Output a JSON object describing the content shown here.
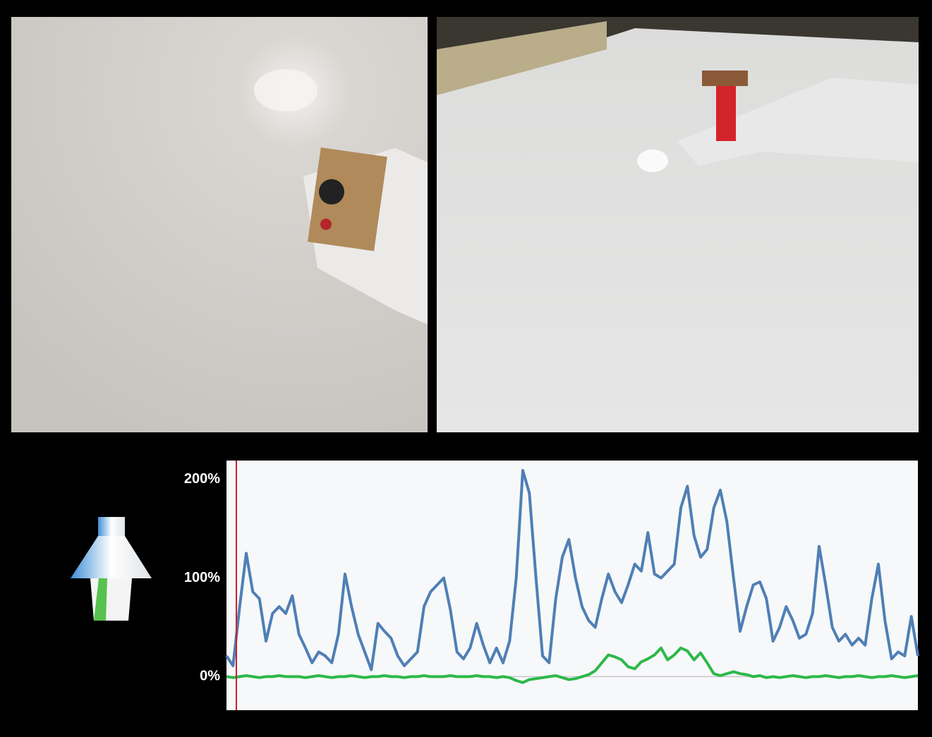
{
  "chart_data": {
    "type": "line",
    "series": [
      {
        "color": "#4f7fb5",
        "values": [
          21,
          11,
          71,
          125,
          86,
          79,
          36,
          64,
          71,
          64,
          82,
          43,
          29,
          14,
          25,
          21,
          14,
          43,
          104,
          71,
          43,
          25,
          7,
          54,
          46,
          39,
          21,
          11,
          18,
          25,
          71,
          86,
          93,
          100,
          68,
          25,
          18,
          29,
          54,
          32,
          14,
          29,
          14,
          36,
          100,
          209,
          186,
          100,
          21,
          14,
          79,
          121,
          139,
          100,
          71,
          57,
          50,
          79,
          104,
          86,
          75,
          93,
          114,
          107,
          146,
          104,
          100,
          107,
          114,
          171,
          193,
          143,
          121,
          129,
          171,
          189,
          157,
          100,
          46,
          71,
          93,
          96,
          79,
          36,
          50,
          71,
          57,
          39,
          43,
          64,
          132,
          93,
          50,
          36,
          43,
          32,
          39,
          32,
          79,
          114,
          57,
          18,
          25,
          21,
          61,
          21
        ]
      },
      {
        "color": "#2db84a",
        "values": [
          0,
          -1,
          0,
          1,
          0,
          -1,
          0,
          0,
          1,
          0,
          0,
          0,
          -1,
          0,
          1,
          0,
          -1,
          0,
          0,
          1,
          0,
          -1,
          0,
          0,
          1,
          0,
          0,
          -1,
          0,
          0,
          1,
          0,
          0,
          0,
          1,
          0,
          0,
          0,
          1,
          0,
          0,
          -1,
          0,
          -1,
          -4,
          -6,
          -3,
          -2,
          -1,
          0,
          1,
          -1,
          -3,
          -2,
          0,
          2,
          6,
          14,
          22,
          20,
          17,
          10,
          8,
          15,
          18,
          22,
          29,
          17,
          22,
          29,
          26,
          17,
          24,
          14,
          3,
          1,
          3,
          5,
          3,
          2,
          0,
          1,
          -1,
          0,
          -1,
          0,
          1,
          0,
          -1,
          0,
          0,
          1,
          0,
          -1,
          0,
          0,
          1,
          0,
          -1,
          0,
          0,
          1,
          0,
          -1,
          0,
          1
        ]
      }
    ],
    "ylim": [
      -34,
      219
    ],
    "yticks": [
      {
        "value": 0,
        "label": "0%"
      },
      {
        "value": 100,
        "label": "100%"
      },
      {
        "value": 200,
        "label": "200%"
      }
    ]
  }
}
